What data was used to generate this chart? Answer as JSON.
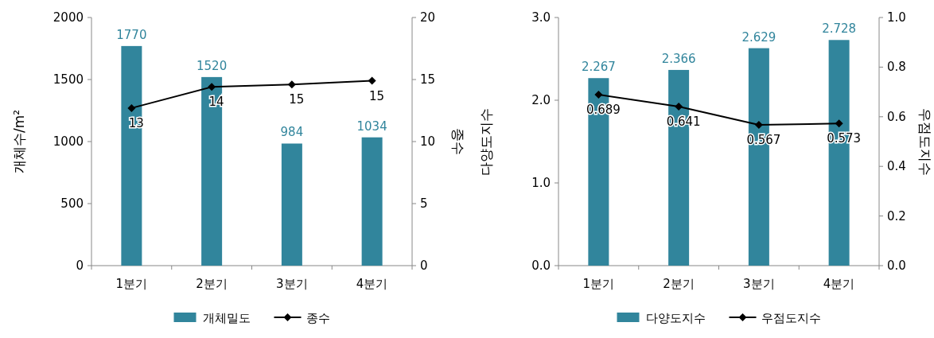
{
  "chart_data": [
    {
      "type": "bar",
      "categories": [
        "1분기",
        "2분기",
        "3분기",
        "4분기"
      ],
      "ylabel": "개체수/m²",
      "y2label": "종수",
      "ylim": [
        0,
        2000
      ],
      "yticks": [
        0,
        500,
        1000,
        1500,
        2000
      ],
      "y2lim": [
        0,
        20
      ],
      "y2ticks": [
        0,
        5,
        10,
        15,
        20
      ],
      "legend": "bottom",
      "marker": "diamond",
      "grid": false,
      "series": [
        {
          "name": "개체밀도",
          "color": "#31859c",
          "values": [
            1770,
            1520,
            984,
            1034
          ],
          "value_labels": [
            "1770",
            "1520",
            "984",
            "1034"
          ]
        },
        {
          "name": "종수",
          "type": "line",
          "axis": "y2",
          "color": "#000000",
          "values": [
            12.7,
            14.4,
            14.6,
            14.9
          ],
          "value_labels": [
            "13",
            "14",
            "15",
            "15"
          ]
        }
      ]
    },
    {
      "type": "bar",
      "categories": [
        "1분기",
        "2분기",
        "3분기",
        "4분기"
      ],
      "ylabel": "다양도지수",
      "y2label": "우점도지수",
      "ylim": [
        0,
        3
      ],
      "yticks": [
        {
          "value": 0,
          "label": "0.0"
        },
        {
          "value": 1,
          "label": "1.0"
        },
        {
          "value": 2,
          "label": "2.0"
        },
        {
          "value": 3,
          "label": "3.0"
        }
      ],
      "y2lim": [
        0,
        1
      ],
      "y2ticks": [
        {
          "value": 0,
          "label": "0.0"
        },
        {
          "value": 0.2,
          "label": "0.2"
        },
        {
          "value": 0.4,
          "label": "0.4"
        },
        {
          "value": 0.6,
          "label": "0.6"
        },
        {
          "value": 0.8,
          "label": "0.8"
        },
        {
          "value": 1,
          "label": "1.0"
        }
      ],
      "legend": "bottom",
      "marker": "diamond",
      "grid": false,
      "data_labels": true,
      "series": [
        {
          "name": "다양도지수",
          "color": "#31859c",
          "values": [
            2.267,
            2.366,
            2.629,
            2.728
          ]
        },
        {
          "name": "우점도지수",
          "type": "line",
          "axis": "y2",
          "color": "#000000",
          "values": [
            0.689,
            0.641,
            0.567,
            0.573
          ]
        }
      ]
    }
  ]
}
